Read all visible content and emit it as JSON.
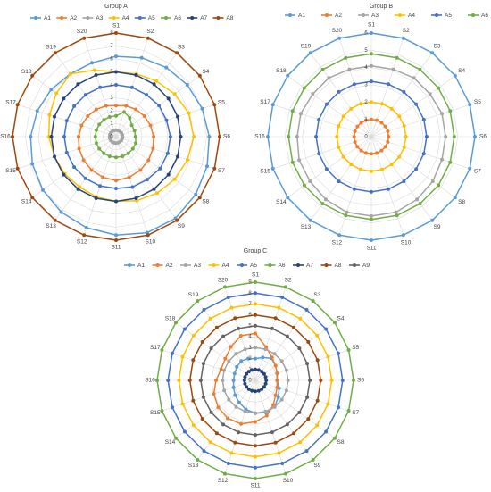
{
  "chart_data": [
    {
      "type": "radar",
      "title": "Group A",
      "axes": [
        "S1",
        "S2",
        "S3",
        "S4",
        "S5",
        "S6",
        "S7",
        "S8",
        "S9",
        "S10",
        "S11",
        "S12",
        "S13",
        "S14",
        "S15",
        "S16",
        "S17",
        "S18",
        "S19",
        "S20"
      ],
      "rlim": [
        0,
        8
      ],
      "ticks": [
        "0",
        "1",
        "2",
        "3",
        "4",
        "5",
        "6",
        "7",
        "8"
      ],
      "grid": true,
      "legend": "top",
      "series": [
        {
          "name": "A1",
          "color": "#5B9BD5",
          "values": [
            6.2,
            6.4,
            6.6,
            6.8,
            7,
            7.2,
            7.4,
            7.6,
            7.8,
            7.8,
            7.6,
            7.4,
            7.2,
            7,
            6.8,
            6.6,
            6.4,
            6.2,
            6.0,
            6.0
          ]
        },
        {
          "name": "A2",
          "color": "#ED7D31",
          "values": [
            2.4,
            2.5,
            2.6,
            2.7,
            2.8,
            2.9,
            3.0,
            3.1,
            3.2,
            3.3,
            3.4,
            3.3,
            3.2,
            3.1,
            3.0,
            2.9,
            2.8,
            2.7,
            2.6,
            2.5
          ]
        },
        {
          "name": "A3",
          "color": "#A5A5A5",
          "values": [
            0.5,
            0.5,
            0.5,
            0.5,
            0.5,
            0.5,
            0.5,
            0.5,
            0.5,
            0.5,
            0.5,
            0.5,
            0.5,
            0.5,
            0.5,
            0.5,
            0.5,
            0.5,
            0.5,
            0.5
          ]
        },
        {
          "name": "A4",
          "color": "#FFC000",
          "values": [
            5.0,
            5.1,
            5.3,
            5.6,
            5.9,
            6.0,
            5.8,
            5.6,
            5.4,
            5.2,
            5.0,
            4.9,
            4.8,
            4.9,
            5.0,
            5.2,
            5.4,
            5.7,
            6.0,
            5.4
          ]
        },
        {
          "name": "A5",
          "color": "#4472C4",
          "values": [
            4.0,
            4.0,
            4.0,
            4.1,
            4.1,
            4.2,
            4.2,
            4.2,
            4.1,
            4.1,
            4.0,
            4.0,
            4.0,
            4.0,
            4.0,
            4.0,
            4.0,
            4.0,
            4.0,
            4.0
          ]
        },
        {
          "name": "A6",
          "color": "#70AD47",
          "values": [
            1.6,
            2.0,
            1.8,
            1.5,
            1.5,
            1.5,
            1.6,
            1.6,
            1.6,
            1.6,
            1.6,
            1.6,
            1.6,
            1.6,
            1.6,
            1.6,
            1.6,
            1.6,
            1.6,
            1.6
          ]
        },
        {
          "name": "A7",
          "color": "#264478",
          "values": [
            5.0,
            5.0,
            5.0,
            5.0,
            5.0,
            5.0,
            5.0,
            5.0,
            5.0,
            5.0,
            5.0,
            5.0,
            5.0,
            5.0,
            5.0,
            5.0,
            5.0,
            5.0,
            5.0,
            5.0
          ]
        },
        {
          "name": "A8",
          "color": "#9E480E",
          "values": [
            8,
            8,
            8,
            8,
            8,
            8,
            8,
            8,
            8,
            8,
            8,
            8,
            8,
            8,
            8,
            8,
            8,
            8,
            8,
            8
          ]
        }
      ]
    },
    {
      "type": "radar",
      "title": "Group B",
      "axes": [
        "S1",
        "S2",
        "S3",
        "S4",
        "S5",
        "S6",
        "S7",
        "S8",
        "S9",
        "S10",
        "S11",
        "S12",
        "S13",
        "S14",
        "S15",
        "S16",
        "S17",
        "S18",
        "S19",
        "S20"
      ],
      "rlim": [
        0,
        6
      ],
      "ticks": [
        "0",
        "1",
        "2",
        "3",
        "4",
        "5",
        "6"
      ],
      "grid": true,
      "legend": "top",
      "series": [
        {
          "name": "A1",
          "color": "#5B9BD5",
          "values": [
            6,
            6,
            6,
            6,
            6,
            6,
            6,
            6,
            6,
            6,
            6,
            6,
            6,
            6,
            6,
            6,
            6,
            6,
            6,
            6
          ]
        },
        {
          "name": "A2",
          "color": "#ED7D31",
          "values": [
            1,
            1,
            1,
            1,
            1,
            1,
            1,
            1,
            1,
            1,
            1,
            1,
            1,
            1,
            1,
            1,
            1,
            1,
            1,
            1
          ]
        },
        {
          "name": "A3",
          "color": "#A5A5A5",
          "values": [
            4.1,
            4.1,
            4.2,
            4.2,
            4.3,
            4.3,
            4.3,
            4.4,
            4.5,
            4.6,
            4.6,
            4.6,
            4.5,
            4.4,
            4.4,
            4.3,
            4.3,
            4.2,
            4.2,
            4.1
          ]
        },
        {
          "name": "A4",
          "color": "#FFC000",
          "values": [
            2,
            2,
            2,
            2,
            2,
            2,
            2,
            2,
            2,
            2,
            2,
            2,
            2,
            2,
            2,
            2,
            2,
            2,
            2,
            2
          ]
        },
        {
          "name": "A5",
          "color": "#4472C4",
          "values": [
            3.2,
            3.2,
            3.2,
            3.2,
            3.2,
            3.2,
            3.2,
            3.2,
            3.2,
            3.2,
            3.2,
            3.2,
            3.2,
            3.2,
            3.2,
            3.2,
            3.2,
            3.2,
            3.2,
            3.2
          ]
        },
        {
          "name": "A6",
          "color": "#70AD47",
          "values": [
            4.8,
            4.8,
            4.8,
            4.8,
            4.8,
            4.8,
            4.8,
            4.8,
            4.8,
            4.8,
            4.8,
            4.8,
            4.8,
            4.8,
            4.8,
            4.8,
            4.8,
            4.8,
            4.8,
            4.8
          ]
        }
      ]
    },
    {
      "type": "radar",
      "title": "Group C",
      "axes": [
        "S1",
        "S2",
        "S3",
        "S4",
        "S5",
        "S6",
        "S7",
        "S8",
        "S9",
        "S10",
        "S11",
        "S12",
        "S13",
        "S14",
        "S15",
        "S16",
        "S17",
        "S18",
        "S19",
        "S20"
      ],
      "rlim": [
        0,
        9
      ],
      "ticks": [
        "0",
        "1",
        "2",
        "3",
        "4",
        "5",
        "6",
        "7",
        "8",
        "9"
      ],
      "grid": true,
      "legend": "top",
      "series": [
        {
          "name": "A1",
          "color": "#5B9BD5",
          "values": [
            2.0,
            2.2,
            2.5,
            2.3,
            2.1,
            2.0,
            2.3,
            2.6,
            3.0,
            3.1,
            3.0,
            2.8,
            2.5,
            2.3,
            2.1,
            2.0,
            2.0,
            2.1,
            2.2,
            2.1
          ]
        },
        {
          "name": "A2",
          "color": "#ED7D31",
          "values": [
            4.3,
            3.2,
            2.6,
            2.3,
            2.1,
            2.0,
            2.1,
            2.3,
            2.8,
            3.4,
            3.8,
            4.2,
            4.3,
            4.2,
            4.0,
            3.6,
            3.3,
            3.4,
            3.8,
            4.3
          ]
        },
        {
          "name": "A3",
          "color": "#A5A5A5",
          "values": [
            3.0,
            3.0,
            3.0,
            3.0,
            3.0,
            3.0,
            3.0,
            3.0,
            3.0,
            3.0,
            3.0,
            3.0,
            3.0,
            3.0,
            3.0,
            3.0,
            3.0,
            3.0,
            3.0,
            3.0
          ]
        },
        {
          "name": "A4",
          "color": "#FFC000",
          "values": [
            7,
            7,
            7,
            7,
            7,
            7,
            7,
            7,
            7,
            7,
            7,
            7,
            7,
            7,
            7,
            7,
            7,
            7,
            7,
            7
          ]
        },
        {
          "name": "A5",
          "color": "#4472C4",
          "values": [
            8,
            8,
            8,
            8,
            8,
            8,
            8,
            8,
            8,
            8,
            8,
            8,
            8,
            8,
            8,
            8,
            8,
            8,
            8,
            8
          ]
        },
        {
          "name": "A6",
          "color": "#70AD47",
          "values": [
            9,
            9,
            9,
            9,
            9,
            9,
            9,
            9,
            9,
            9,
            9,
            9,
            9,
            9,
            9,
            9,
            9,
            9,
            9,
            9
          ]
        },
        {
          "name": "A7",
          "color": "#264478",
          "values": [
            1,
            1,
            1,
            1,
            1,
            1,
            1,
            1,
            1,
            1,
            1,
            1,
            1,
            1,
            1,
            1,
            1,
            1,
            1,
            1
          ]
        },
        {
          "name": "A8",
          "color": "#9E480E",
          "values": [
            6,
            6,
            6,
            6,
            6,
            6,
            6,
            6,
            6,
            6,
            6,
            6,
            6,
            6,
            6,
            6,
            6,
            6,
            6,
            6
          ]
        },
        {
          "name": "A9",
          "color": "#636363",
          "values": [
            5,
            5,
            5,
            5,
            5,
            5,
            5,
            5,
            5,
            5,
            5,
            5,
            5,
            5,
            5,
            5,
            5,
            5,
            5,
            5
          ]
        }
      ]
    }
  ]
}
